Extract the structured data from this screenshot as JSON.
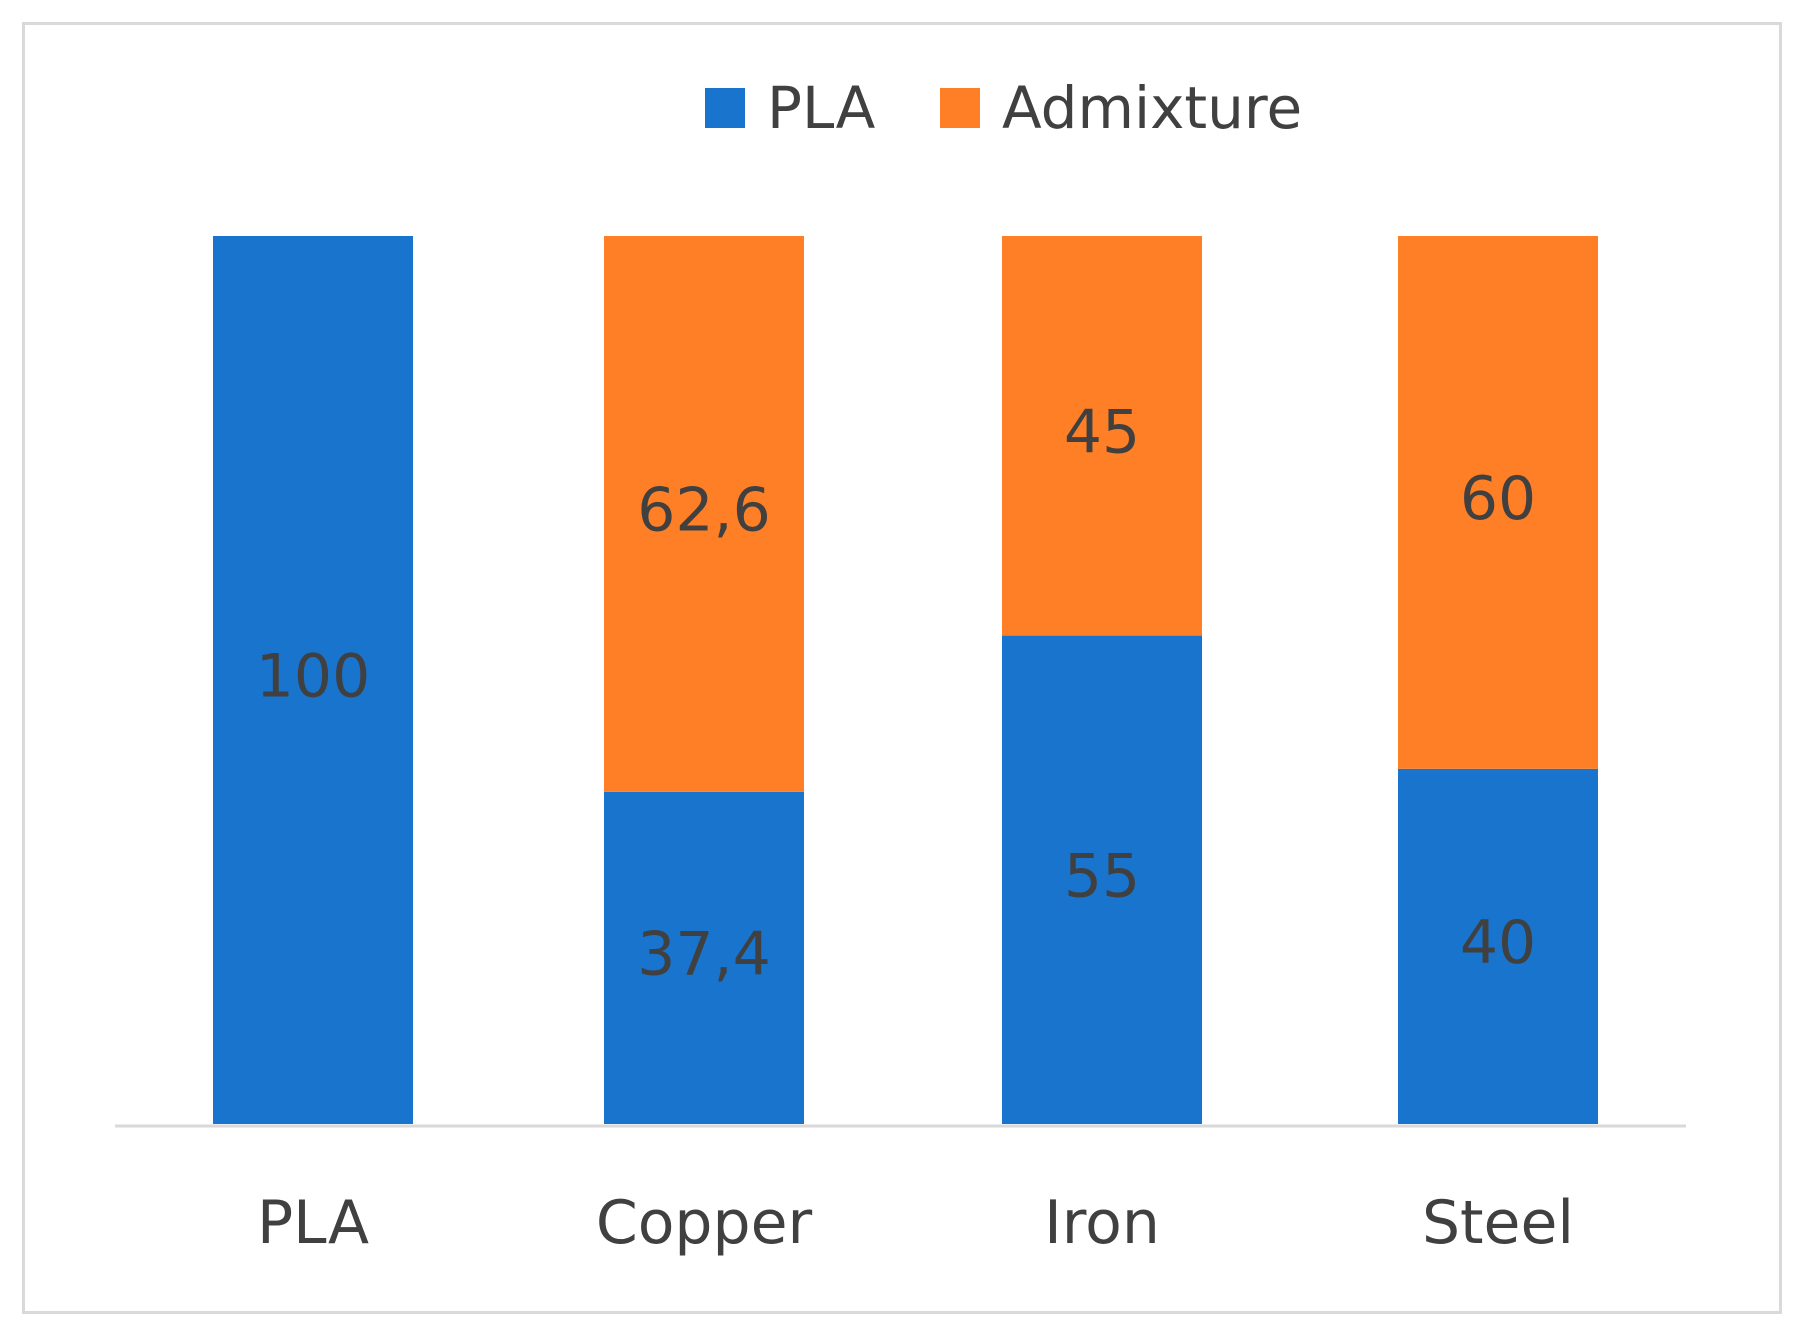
{
  "chart_data": {
    "type": "bar",
    "stacked": true,
    "title": "",
    "xlabel": "",
    "ylabel": "",
    "ylim": [
      0,
      100
    ],
    "grid": false,
    "legend": {
      "placement": "top-center"
    },
    "categories": [
      "PLA",
      "Copper",
      "Iron",
      "Steel"
    ],
    "series": [
      {
        "name": "PLA",
        "color": "#1874cd",
        "values": [
          100,
          37.4,
          55,
          40
        ],
        "labels": [
          "100",
          "37,4",
          "55",
          "40"
        ]
      },
      {
        "name": "Admixture",
        "color": "#ff7f27",
        "values": [
          0,
          62.6,
          45,
          60
        ],
        "labels": [
          "",
          "62,6",
          "45",
          "60"
        ]
      }
    ]
  }
}
